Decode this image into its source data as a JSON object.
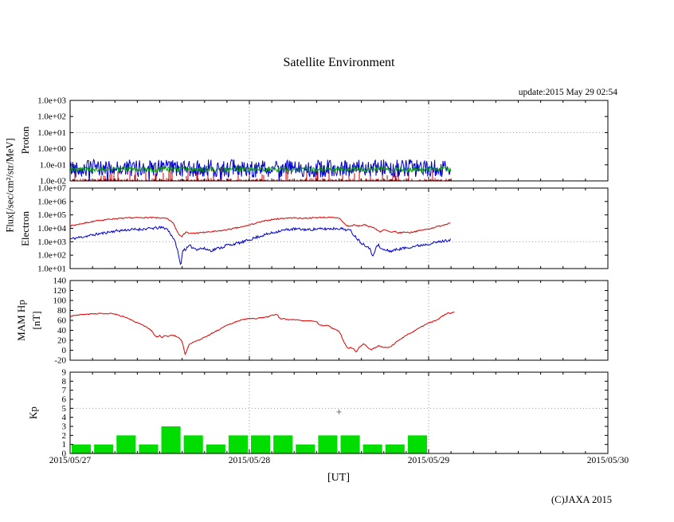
{
  "title": "Satellite Environment",
  "update_label": "update:2015 May 29 02:54",
  "x_unit_label": "[UT]",
  "copyright": "(C)JAXA 2015",
  "flux_axis_label": "Flux[/sec/cm²/str/MeV]",
  "x_axis": {
    "tick_labels": [
      "2015/05/27",
      "2015/05/28",
      "2015/05/29",
      "2015/05/30"
    ],
    "start_hour": 0,
    "end_hour": 72,
    "minor_step_hours": 3,
    "day_gridline_hours": [
      24,
      48
    ],
    "data_end_hour": 51
  },
  "colors": {
    "axis": "#000000",
    "grid": "#999999",
    "proton_blue": "#0000cc",
    "proton_green": "#00a000",
    "proton_red": "#cc0000",
    "electron_red": "#dd0000",
    "electron_blue": "#0000cc",
    "mam_red": "#dd0000",
    "kp_green": "#00dd00",
    "kp_marker": "#777777"
  },
  "chart_data": [
    {
      "id": "proton",
      "type": "line-noisy",
      "panel_label": "Proton",
      "y_scale": "log",
      "y_min": 0.01,
      "y_max": 1000,
      "y_tick_values": [
        1000,
        100,
        10,
        1,
        0.1,
        0.01
      ],
      "y_tick_labels": [
        "1.0e+03",
        "1.0e+02",
        "1.0e+01",
        "1.0e+00",
        "1.0e-01",
        "1.0e-02"
      ],
      "grid_value": 10,
      "series": [
        {
          "name": "proton-red",
          "style": "spikes-from-bottom",
          "base": 0.011,
          "spike_chance": 0.12,
          "spike_max_decades": 0.9,
          "seed": 5
        },
        {
          "name": "proton-blue",
          "style": "noise-band",
          "center": 0.06,
          "spread_decades": 0.55,
          "dip_chance": 0.02,
          "seed": 42
        },
        {
          "name": "proton-green",
          "style": "noise-line",
          "center": 0.052,
          "spread_decades": 0.16,
          "seed": 9
        }
      ]
    },
    {
      "id": "electron",
      "type": "line",
      "panel_label": "Electron",
      "y_scale": "log",
      "y_min": 10,
      "y_max": 10000000,
      "y_tick_values": [
        10000000,
        1000000,
        100000,
        10000,
        1000,
        100,
        10
      ],
      "y_tick_labels": [
        "1.0e+07",
        "1.0e+06",
        "1.0e+05",
        "1.0e+04",
        "1.0e+03",
        "1.0e+02",
        "1.0e+01"
      ],
      "grid_value": 1000,
      "series": [
        {
          "name": "electron-red",
          "jitter_decades": 0.045,
          "seed": 7,
          "points": [
            [
              0,
              15000
            ],
            [
              2,
              25000
            ],
            [
              4,
              40000
            ],
            [
              6,
              52000
            ],
            [
              8,
              60000
            ],
            [
              10,
              63000
            ],
            [
              12,
              60000
            ],
            [
              13,
              52000
            ],
            [
              13.8,
              25000
            ],
            [
              14.5,
              4000
            ],
            [
              15,
              2500
            ],
            [
              15.5,
              5600
            ],
            [
              16,
              4000
            ],
            [
              17,
              4500
            ],
            [
              18,
              5000
            ],
            [
              19,
              5600
            ],
            [
              20,
              6300
            ],
            [
              21,
              7900
            ],
            [
              22,
              10000
            ],
            [
              23,
              12600
            ],
            [
              24,
              17800
            ],
            [
              25,
              25000
            ],
            [
              26,
              35000
            ],
            [
              27,
              45000
            ],
            [
              28,
              52000
            ],
            [
              29,
              59000
            ],
            [
              30,
              60000
            ],
            [
              31,
              56000
            ],
            [
              32,
              59000
            ],
            [
              33,
              63000
            ],
            [
              34,
              66000
            ],
            [
              35,
              63000
            ],
            [
              36,
              60000
            ],
            [
              36.5,
              30000
            ],
            [
              37,
              16000
            ],
            [
              37.5,
              14000
            ],
            [
              38,
              18000
            ],
            [
              38.5,
              15000
            ],
            [
              39,
              16000
            ],
            [
              39.5,
              17800
            ],
            [
              40,
              14000
            ],
            [
              40.5,
              12600
            ],
            [
              41,
              8000
            ],
            [
              41.5,
              5600
            ],
            [
              42,
              7900
            ],
            [
              42.5,
              6300
            ],
            [
              43,
              5000
            ],
            [
              43.5,
              5600
            ],
            [
              44,
              4500
            ],
            [
              44.5,
              5000
            ],
            [
              45,
              5200
            ],
            [
              45.5,
              4800
            ],
            [
              46,
              5600
            ],
            [
              47,
              7100
            ],
            [
              48,
              9000
            ],
            [
              49,
              12600
            ],
            [
              50,
              17800
            ],
            [
              51,
              28000
            ]
          ]
        },
        {
          "name": "electron-blue",
          "jitter_decades": 0.1,
          "seed": 11,
          "points": [
            [
              0,
              1600
            ],
            [
              2,
              2500
            ],
            [
              4,
              4000
            ],
            [
              6,
              6300
            ],
            [
              8,
              7900
            ],
            [
              10,
              8900
            ],
            [
              11,
              10000
            ],
            [
              12,
              11000
            ],
            [
              12.5,
              11200
            ],
            [
              13,
              8900
            ],
            [
              13.8,
              2000
            ],
            [
              14.3,
              400
            ],
            [
              14.8,
              16
            ],
            [
              15.1,
              250
            ],
            [
              15.5,
              280
            ],
            [
              16,
              500
            ],
            [
              16.5,
              350
            ],
            [
              17,
              280
            ],
            [
              17.5,
              320
            ],
            [
              18,
              300
            ],
            [
              18.5,
              250
            ],
            [
              19,
              220
            ],
            [
              19.5,
              300
            ],
            [
              20,
              350
            ],
            [
              20.5,
              400
            ],
            [
              21,
              600
            ],
            [
              21.5,
              560
            ],
            [
              22,
              700
            ],
            [
              23,
              900
            ],
            [
              24,
              1400
            ],
            [
              25,
              2200
            ],
            [
              26,
              3200
            ],
            [
              27,
              4500
            ],
            [
              28,
              6300
            ],
            [
              29,
              7900
            ],
            [
              30,
              8900
            ],
            [
              31,
              8400
            ],
            [
              32,
              7900
            ],
            [
              33,
              8900
            ],
            [
              34,
              8900
            ],
            [
              35,
              9500
            ],
            [
              36,
              10000
            ],
            [
              36.5,
              8900
            ],
            [
              37,
              7900
            ],
            [
              37.5,
              7100
            ],
            [
              38,
              3200
            ],
            [
              38.5,
              1600
            ],
            [
              39,
              800
            ],
            [
              39.5,
              560
            ],
            [
              40,
              400
            ],
            [
              40.5,
              90
            ],
            [
              41,
              400
            ],
            [
              41.3,
              560
            ],
            [
              41.6,
              300
            ],
            [
              42,
              250
            ],
            [
              42.5,
              220
            ],
            [
              43,
              200
            ],
            [
              43.5,
              250
            ],
            [
              44,
              280
            ],
            [
              44.5,
              320
            ],
            [
              45,
              350
            ],
            [
              45.5,
              400
            ],
            [
              46,
              450
            ],
            [
              46.5,
              500
            ],
            [
              47,
              560
            ],
            [
              47.5,
              630
            ],
            [
              48,
              700
            ],
            [
              48.5,
              800
            ],
            [
              49,
              900
            ],
            [
              49.5,
              1000
            ],
            [
              50,
              1120
            ],
            [
              50.5,
              1250
            ],
            [
              51,
              1600
            ]
          ]
        }
      ]
    },
    {
      "id": "mam",
      "type": "line",
      "panel_label": "MAM Hp",
      "panel_label2": "[nT]",
      "y_scale": "linear",
      "y_min": -20,
      "y_max": 140,
      "y_tick_values": [
        140,
        120,
        100,
        80,
        60,
        40,
        20,
        0,
        -20
      ],
      "y_tick_labels": [
        "140",
        "120",
        "100",
        "80",
        "60",
        "40",
        "20",
        "0",
        "-20"
      ],
      "series": [
        {
          "name": "mam-hp",
          "jitter": 1.0,
          "seed": 3,
          "points": [
            [
              0,
              68
            ],
            [
              0.5,
              70
            ],
            [
              1,
              71
            ],
            [
              2,
              72
            ],
            [
              3,
              73
            ],
            [
              4,
              74
            ],
            [
              5,
              73
            ],
            [
              5.5,
              74
            ],
            [
              6,
              72
            ],
            [
              7,
              68
            ],
            [
              7.5,
              66
            ],
            [
              8,
              62
            ],
            [
              9,
              55
            ],
            [
              10,
              48
            ],
            [
              10.5,
              44
            ],
            [
              11,
              38
            ],
            [
              11.3,
              30
            ],
            [
              11.6,
              27
            ],
            [
              12,
              29
            ],
            [
              12.3,
              26
            ],
            [
              12.6,
              29
            ],
            [
              13,
              28
            ],
            [
              13.5,
              30
            ],
            [
              14,
              29
            ],
            [
              14.3,
              27
            ],
            [
              14.6,
              25
            ],
            [
              15,
              18
            ],
            [
              15.2,
              5
            ],
            [
              15.4,
              -8
            ],
            [
              15.6,
              -2
            ],
            [
              15.8,
              8
            ],
            [
              16,
              14
            ],
            [
              16.2,
              12
            ],
            [
              16.5,
              17
            ],
            [
              17,
              20
            ],
            [
              17.5,
              22
            ],
            [
              18,
              26
            ],
            [
              19,
              34
            ],
            [
              20,
              42
            ],
            [
              21,
              50
            ],
            [
              22,
              56
            ],
            [
              23,
              61
            ],
            [
              24,
              64
            ],
            [
              24.5,
              63
            ],
            [
              25,
              64
            ],
            [
              25.5,
              65
            ],
            [
              26,
              66
            ],
            [
              26.5,
              67
            ],
            [
              27,
              70
            ],
            [
              27.5,
              72
            ],
            [
              27.8,
              71
            ],
            [
              28,
              65
            ],
            [
              28.3,
              62
            ],
            [
              28.6,
              63
            ],
            [
              29,
              62
            ],
            [
              29.5,
              61
            ],
            [
              30,
              62
            ],
            [
              30.5,
              61
            ],
            [
              31,
              60
            ],
            [
              32,
              59
            ],
            [
              33,
              57
            ],
            [
              33.3,
              52
            ],
            [
              33.6,
              50
            ],
            [
              34,
              49
            ],
            [
              34.3,
              51
            ],
            [
              34.6,
              49
            ],
            [
              35,
              45
            ],
            [
              35.5,
              42
            ],
            [
              36,
              38
            ],
            [
              36.3,
              30
            ],
            [
              36.6,
              18
            ],
            [
              37,
              8
            ],
            [
              37.3,
              4
            ],
            [
              37.6,
              6
            ],
            [
              38,
              2
            ],
            [
              38.3,
              -3
            ],
            [
              38.6,
              4
            ],
            [
              39,
              10
            ],
            [
              39.3,
              13
            ],
            [
              39.6,
              10
            ],
            [
              40,
              4
            ],
            [
              40.3,
              1
            ],
            [
              40.6,
              4
            ],
            [
              41,
              6
            ],
            [
              41.3,
              9
            ],
            [
              41.6,
              7
            ],
            [
              42,
              6
            ],
            [
              42.5,
              5
            ],
            [
              43,
              8
            ],
            [
              43.3,
              12
            ],
            [
              43.6,
              16
            ],
            [
              44,
              20
            ],
            [
              44.5,
              25
            ],
            [
              45,
              30
            ],
            [
              45.5,
              34
            ],
            [
              46,
              38
            ],
            [
              46.5,
              43
            ],
            [
              47,
              47
            ],
            [
              47.5,
              51
            ],
            [
              48,
              55
            ],
            [
              48.5,
              57
            ],
            [
              49,
              60
            ],
            [
              49.3,
              63
            ],
            [
              49.6,
              66
            ],
            [
              50,
              70
            ],
            [
              50.3,
              73
            ],
            [
              50.6,
              75
            ],
            [
              51,
              74
            ],
            [
              51.3,
              76
            ],
            [
              51.5,
              77
            ]
          ]
        }
      ]
    },
    {
      "id": "kp",
      "type": "bar",
      "panel_label": "Kp",
      "y_scale": "linear",
      "y_min": 0,
      "y_max": 9,
      "y_tick_values": [
        9,
        8,
        7,
        6,
        5,
        4,
        3,
        2,
        1,
        0
      ],
      "y_tick_labels": [
        "9",
        "8",
        "7",
        "6",
        "5",
        "4",
        "3",
        "2",
        "1",
        "0"
      ],
      "grid_value": 5,
      "bar_width_hours": 3,
      "values": [
        1,
        1,
        2,
        1,
        3,
        2,
        1,
        2,
        2,
        2,
        1,
        2,
        2,
        1,
        1,
        2
      ],
      "marker": {
        "hour": 36,
        "value": 4.6
      }
    }
  ]
}
